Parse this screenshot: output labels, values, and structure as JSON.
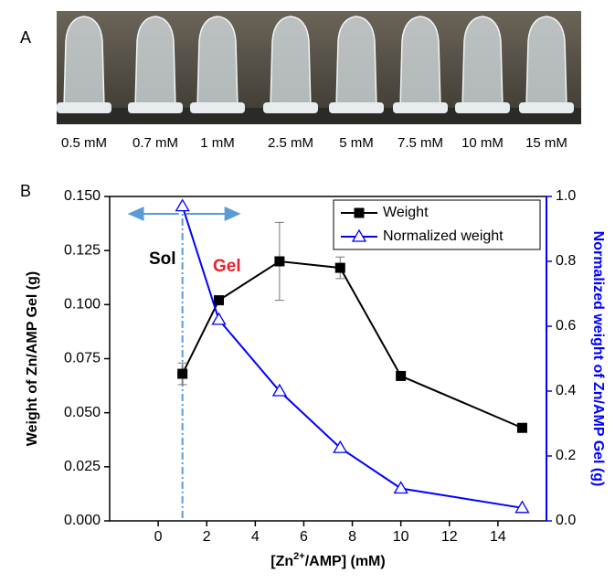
{
  "panel_a": {
    "label": "A",
    "tube_labels": [
      "0.5 mM",
      "0.7 mM",
      "1 mM",
      "2.5 mM",
      "5 mM",
      "7.5 mM",
      "10 mM",
      "15 mM"
    ]
  },
  "chart_data": {
    "type": "line",
    "panel_label": "B",
    "x": [
      1,
      2.5,
      5,
      7.5,
      10,
      15
    ],
    "series": [
      {
        "name": "Weight",
        "color": "#000000",
        "marker": "square",
        "values": [
          0.068,
          0.102,
          0.12,
          0.117,
          0.067,
          0.043
        ],
        "errors": [
          0.005,
          null,
          0.018,
          0.005,
          null,
          null
        ]
      },
      {
        "name": "Normalized weight",
        "color": "#0000ff",
        "marker": "triangle",
        "axis": "y2",
        "values": [
          0.97,
          0.62,
          0.4,
          0.225,
          0.1,
          0.04
        ]
      }
    ],
    "x_label": [
      "[Zn",
      "2+",
      "/AMP] (mM)"
    ],
    "y_label": "Weight of Zn/AMP Gel (g)",
    "y2_label": "Normalized weight of Zn/AMP Gel (g)",
    "xlim": [
      -2,
      16
    ],
    "xticks": [
      0,
      2,
      4,
      6,
      8,
      10,
      12,
      14
    ],
    "ylim": [
      0,
      0.15
    ],
    "yticks": [
      {
        "value": 0,
        "label": "0.000"
      },
      {
        "value": 0.025,
        "label": "0.025"
      },
      {
        "value": 0.05,
        "label": "0.050"
      },
      {
        "value": 0.075,
        "label": "0.075"
      },
      {
        "value": 0.1,
        "label": "0.100"
      },
      {
        "value": 0.125,
        "label": "0.125"
      },
      {
        "value": 0.15,
        "label": "0.150"
      }
    ],
    "y2lim": [
      0,
      1
    ],
    "y2ticks": [
      {
        "value": 0,
        "label": "0.0"
      },
      0.2,
      0.4,
      0.6,
      0.8,
      {
        "value": 1,
        "label": "1.0"
      }
    ],
    "vline_x": 1,
    "annotations": [
      "Sol",
      "Gel"
    ],
    "legend": "upper right"
  }
}
